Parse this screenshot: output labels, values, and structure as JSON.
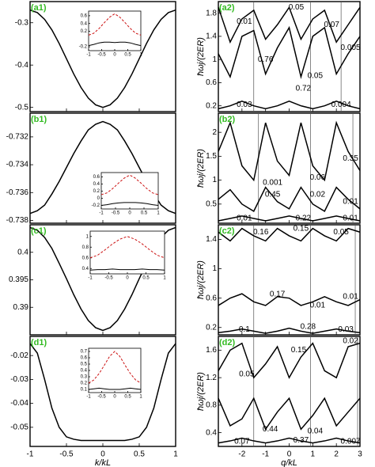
{
  "chart_data": [
    {
      "type": "line",
      "panel_label": "(a1)",
      "x": [
        -1,
        -0.9,
        -0.8,
        -0.7,
        -0.6,
        -0.5,
        -0.4,
        -0.3,
        -0.2,
        -0.1,
        0,
        0.1,
        0.2,
        0.3,
        0.4,
        0.5,
        0.6,
        0.7,
        0.8,
        0.9,
        1
      ],
      "series": [
        {
          "color": "#000000",
          "style": "solid",
          "values": [
            -0.27,
            -0.276,
            -0.292,
            -0.317,
            -0.349,
            -0.385,
            -0.421,
            -0.453,
            -0.478,
            -0.494,
            -0.5,
            -0.494,
            -0.478,
            -0.453,
            -0.421,
            -0.385,
            -0.349,
            -0.317,
            -0.292,
            -0.276,
            -0.27
          ]
        }
      ],
      "xlim": [
        -1,
        1
      ],
      "xticks": [
        -1,
        -0.5,
        0,
        0.5,
        1
      ],
      "ylim": [
        -0.51,
        -0.25
      ],
      "yticks": [
        -0.3,
        -0.4,
        -0.5
      ],
      "inset": {
        "x": [
          -1,
          -0.8,
          -0.6,
          -0.4,
          -0.2,
          0,
          0.2,
          0.4,
          0.6,
          0.8,
          1
        ],
        "xlim": [
          -1,
          1
        ],
        "xticks": [
          -1,
          -0.5,
          0,
          0.5,
          1
        ],
        "ylim": [
          -0.3,
          0.72
        ],
        "yticks": [
          -0.2,
          0.2,
          0.4,
          0.6
        ],
        "series": [
          {
            "color": "#cc1111",
            "style": "dashed",
            "values": [
              0.1,
              0.15,
              0.27,
              0.42,
              0.56,
              0.65,
              0.56,
              0.42,
              0.27,
              0.15,
              0.1
            ]
          },
          {
            "color": "#000000",
            "style": "solid",
            "values": [
              -0.17,
              -0.14,
              -0.1,
              -0.08,
              -0.08,
              -0.09,
              -0.08,
              -0.08,
              -0.1,
              -0.14,
              -0.17
            ]
          }
        ]
      }
    },
    {
      "type": "line",
      "panel_label": "(b1)",
      "x": [
        -1,
        -0.9,
        -0.8,
        -0.7,
        -0.6,
        -0.5,
        -0.4,
        -0.3,
        -0.2,
        -0.1,
        0,
        0.1,
        0.2,
        0.3,
        0.4,
        0.5,
        0.6,
        0.7,
        0.8,
        0.9,
        1
      ],
      "series": [
        {
          "color": "#000000",
          "style": "solid",
          "values": [
            -0.7375,
            -0.7373,
            -0.7369,
            -0.7361,
            -0.7352,
            -0.7342,
            -0.7332,
            -0.7323,
            -0.7315,
            -0.7311,
            -0.7309,
            -0.7311,
            -0.7315,
            -0.7323,
            -0.7332,
            -0.7342,
            -0.7352,
            -0.7361,
            -0.7369,
            -0.7373,
            -0.7375
          ]
        }
      ],
      "xlim": [
        -1,
        1
      ],
      "xticks": [
        -1,
        -0.5,
        0,
        0.5,
        1
      ],
      "ylim": [
        -0.7382,
        -0.7303
      ],
      "yticks": [
        -0.732,
        -0.734,
        -0.736,
        -0.738
      ],
      "inset": {
        "x": [
          -1,
          -0.8,
          -0.6,
          -0.4,
          -0.2,
          0,
          0.2,
          0.4,
          0.6,
          0.8,
          1
        ],
        "xlim": [
          -1,
          1
        ],
        "xticks": [
          -1,
          -0.5,
          0,
          0.5,
          1
        ],
        "ylim": [
          -0.3,
          0.72
        ],
        "yticks": [
          -0.2,
          0,
          0.2,
          0.4,
          0.6
        ],
        "series": [
          {
            "color": "#cc1111",
            "style": "dashed",
            "values": [
              0.1,
              0.15,
              0.27,
              0.42,
              0.56,
              0.65,
              0.56,
              0.42,
              0.27,
              0.15,
              0.1
            ]
          },
          {
            "color": "#000000",
            "style": "solid",
            "values": [
              -0.2,
              -0.18,
              -0.15,
              -0.13,
              -0.12,
              -0.12,
              -0.12,
              -0.13,
              -0.15,
              -0.18,
              -0.2
            ]
          }
        ]
      }
    },
    {
      "type": "line",
      "panel_label": "(c1)",
      "x": [
        -1,
        -0.9,
        -0.8,
        -0.7,
        -0.6,
        -0.5,
        -0.4,
        -0.3,
        -0.2,
        -0.1,
        0,
        0.1,
        0.2,
        0.3,
        0.4,
        0.5,
        0.6,
        0.7,
        0.8,
        0.9,
        1
      ],
      "series": [
        {
          "color": "#000000",
          "style": "solid",
          "values": [
            0.4045,
            0.404,
            0.4027,
            0.4007,
            0.398,
            0.3952,
            0.3923,
            0.3897,
            0.3876,
            0.3863,
            0.3858,
            0.3863,
            0.3876,
            0.3897,
            0.3923,
            0.3952,
            0.398,
            0.4007,
            0.4027,
            0.404,
            0.4045
          ]
        }
      ],
      "xlim": [
        -1,
        1
      ],
      "xticks": [
        -1,
        -0.5,
        0,
        0.5,
        1
      ],
      "ylim": [
        0.385,
        0.405
      ],
      "yticks": [
        0.4,
        0.395,
        0.39
      ],
      "inset": {
        "x": [
          -1,
          -0.8,
          -0.6,
          -0.4,
          -0.2,
          0,
          0.2,
          0.4,
          0.6,
          0.8,
          1
        ],
        "xlim": [
          -1,
          1
        ],
        "xticks": [
          -1,
          -0.5,
          0,
          0.5,
          1
        ],
        "ylim": [
          0.3,
          1.1
        ],
        "yticks": [
          0.4,
          0.6,
          0.8,
          1
        ],
        "series": [
          {
            "color": "#cc1111",
            "style": "dashed",
            "values": [
              0.6,
              0.65,
              0.75,
              0.86,
              0.95,
              1.0,
              0.95,
              0.86,
              0.75,
              0.65,
              0.6
            ]
          },
          {
            "color": "#000000",
            "style": "solid",
            "values": [
              0.37,
              0.38,
              0.38,
              0.39,
              0.38,
              0.38,
              0.38,
              0.39,
              0.38,
              0.38,
              0.37
            ]
          }
        ]
      }
    },
    {
      "type": "line",
      "panel_label": "(d1)",
      "x": [
        -1,
        -0.9,
        -0.8,
        -0.7,
        -0.6,
        -0.5,
        -0.4,
        -0.3,
        -0.2,
        -0.1,
        0,
        0.1,
        0.2,
        0.3,
        0.4,
        0.5,
        0.6,
        0.7,
        0.8,
        0.9,
        1
      ],
      "series": [
        {
          "color": "#000000",
          "style": "solid",
          "values": [
            -0.015,
            -0.019,
            -0.03,
            -0.042,
            -0.05,
            -0.054,
            -0.055,
            -0.0555,
            -0.0555,
            -0.0555,
            -0.0555,
            -0.0555,
            -0.0555,
            -0.0555,
            -0.055,
            -0.054,
            -0.05,
            -0.042,
            -0.03,
            -0.019,
            -0.015
          ]
        }
      ],
      "xlim": [
        -1,
        1
      ],
      "xticks": [
        -1,
        -0.5,
        0,
        0.5,
        1
      ],
      "ylim": [
        -0.058,
        -0.012
      ],
      "yticks": [
        -0.02,
        -0.03,
        -0.04,
        -0.05
      ],
      "x_label": "k/kL",
      "inset": {
        "x": [
          -1,
          -0.8,
          -0.6,
          -0.4,
          -0.2,
          0,
          0.2,
          0.4,
          0.6,
          0.8,
          1
        ],
        "xlim": [
          -1,
          1
        ],
        "xticks": [
          -1,
          -0.5,
          0,
          0.5,
          1
        ],
        "ylim": [
          0.05,
          0.75
        ],
        "yticks": [
          0.1,
          0.2,
          0.3,
          0.4,
          0.5,
          0.6,
          0.7
        ],
        "series": [
          {
            "color": "#cc1111",
            "style": "dashed",
            "values": [
              0.2,
              0.25,
              0.35,
              0.48,
              0.62,
              0.7,
              0.62,
              0.48,
              0.35,
              0.25,
              0.2
            ]
          },
          {
            "color": "#000000",
            "style": "solid",
            "values": [
              0.1,
              0.11,
              0.12,
              0.11,
              0.1,
              0.1,
              0.1,
              0.11,
              0.12,
              0.11,
              0.1
            ]
          }
        ]
      }
    },
    {
      "type": "line",
      "panel_label": "(a2)",
      "y_label": "ħωj/(2ER)",
      "x": [
        -3,
        -2.5,
        -2,
        -1.5,
        -1,
        -0.5,
        0,
        0.5,
        1,
        1.5,
        2,
        2.5,
        3
      ],
      "series": [
        {
          "color": "#000000",
          "style": "solid",
          "values": [
            0.15,
            0.2,
            0.28,
            0.2,
            0.15,
            0.2,
            0.28,
            0.2,
            0.15,
            0.2,
            0.28,
            0.2,
            0.15
          ]
        },
        {
          "color": "#000000",
          "style": "solid",
          "values": [
            1.1,
            0.7,
            1.4,
            1.5,
            0.75,
            1.2,
            1.55,
            0.7,
            1.4,
            1.55,
            0.75,
            1.1,
            1.4
          ]
        },
        {
          "color": "#000000",
          "style": "solid",
          "values": [
            1.9,
            1.3,
            1.7,
            1.85,
            1.35,
            1.6,
            1.9,
            1.35,
            1.7,
            1.85,
            1.3,
            1.6,
            1.9
          ]
        }
      ],
      "annotations": [
        "0.01",
        "0.05",
        "0.07",
        "0.005",
        "0.76",
        "0.05",
        "0.03",
        "0.72",
        "0.004"
      ],
      "xlim": [
        -3,
        3
      ],
      "xticks": [
        -2,
        -1,
        0,
        1,
        2,
        3
      ],
      "ylim": [
        0.1,
        2.0
      ],
      "yticks": [
        0.2,
        0.6,
        1,
        1.4,
        1.8
      ]
    },
    {
      "type": "line",
      "panel_label": "(b2)",
      "y_label": "ħωj/(2ER)",
      "x": [
        -3,
        -2.5,
        -2,
        -1.5,
        -1,
        -0.5,
        0,
        0.5,
        1,
        1.5,
        2,
        2.5,
        3
      ],
      "series": [
        {
          "color": "#000000",
          "style": "solid",
          "values": [
            0.15,
            0.2,
            0.25,
            0.2,
            0.15,
            0.2,
            0.25,
            0.2,
            0.15,
            0.2,
            0.25,
            0.2,
            0.15
          ]
        },
        {
          "color": "#000000",
          "style": "solid",
          "values": [
            0.6,
            0.8,
            0.5,
            0.35,
            0.85,
            0.55,
            0.4,
            0.85,
            0.5,
            0.35,
            0.85,
            0.6,
            0.4
          ]
        },
        {
          "color": "#000000",
          "style": "solid",
          "values": [
            1.6,
            2.2,
            1.3,
            1.0,
            2.2,
            1.4,
            1.1,
            2.2,
            1.3,
            1.0,
            2.2,
            1.6,
            1.2
          ]
        }
      ],
      "annotations": [
        "0.001",
        "0.06",
        "0.35",
        "0.45",
        "0.02",
        "0.01",
        "0.01",
        "0.22",
        "0.01"
      ],
      "xlim": [
        -3,
        3
      ],
      "xticks": [
        -2,
        -1,
        0,
        1,
        2,
        3
      ],
      "ylim": [
        0.1,
        2.4
      ],
      "yticks": [
        0.5,
        1,
        1.5,
        2
      ]
    },
    {
      "type": "line",
      "panel_label": "(c2)",
      "y_label": "ħωj/(2ER)",
      "x": [
        -3,
        -2.5,
        -2,
        -1.5,
        -1,
        -0.5,
        0,
        0.5,
        1,
        1.5,
        2,
        2.5,
        3
      ],
      "series": [
        {
          "color": "#000000",
          "style": "solid",
          "values": [
            0.13,
            0.15,
            0.18,
            0.15,
            0.12,
            0.15,
            0.19,
            0.15,
            0.12,
            0.15,
            0.18,
            0.15,
            0.13
          ]
        },
        {
          "color": "#000000",
          "style": "solid",
          "values": [
            0.5,
            0.6,
            0.66,
            0.55,
            0.5,
            0.62,
            0.6,
            0.5,
            0.55,
            0.62,
            0.55,
            0.5,
            0.58
          ]
        },
        {
          "color": "#000000",
          "style": "solid",
          "values": [
            1.5,
            1.38,
            1.55,
            1.45,
            1.38,
            1.55,
            1.45,
            1.38,
            1.55,
            1.45,
            1.38,
            1.55,
            1.5
          ]
        }
      ],
      "annotations": [
        "0.16",
        "0.15",
        "0.05",
        "0.17",
        "0.01",
        "0.01",
        "0.1",
        "0.28",
        "0.03"
      ],
      "xlim": [
        -3,
        3
      ],
      "xticks": [
        -2,
        -1,
        0,
        1,
        2,
        3
      ],
      "ylim": [
        0.1,
        1.6
      ],
      "yticks": [
        0.2,
        0.6,
        1,
        1.4
      ]
    },
    {
      "type": "line",
      "panel_label": "(d2)",
      "y_label": "ħωj/(2ER)",
      "x_label": "q/kL",
      "x": [
        -3,
        -2.5,
        -2,
        -1.5,
        -1,
        -0.5,
        0,
        0.5,
        1,
        1.5,
        2,
        2.5,
        3
      ],
      "series": [
        {
          "color": "#000000",
          "style": "solid",
          "values": [
            0.25,
            0.28,
            0.32,
            0.28,
            0.25,
            0.28,
            0.32,
            0.28,
            0.25,
            0.28,
            0.32,
            0.28,
            0.25
          ]
        },
        {
          "color": "#000000",
          "style": "solid",
          "values": [
            0.9,
            0.5,
            0.6,
            0.9,
            0.45,
            0.7,
            0.9,
            0.45,
            0.65,
            0.9,
            0.5,
            0.7,
            0.9
          ]
        },
        {
          "color": "#000000",
          "style": "solid",
          "values": [
            1.3,
            1.6,
            1.7,
            1.2,
            1.4,
            1.65,
            1.2,
            1.5,
            1.7,
            1.3,
            1.2,
            1.65,
            1.7
          ]
        }
      ],
      "annotations": [
        "0.05",
        "0.15",
        "0.02",
        "0.44",
        "0.04",
        "0.07",
        "0.37",
        "0.007"
      ],
      "xlim": [
        -3,
        3
      ],
      "xticks": [
        -2,
        -1,
        0,
        1,
        2,
        3
      ],
      "ylim": [
        0.2,
        1.8
      ],
      "yticks": [
        0.4,
        0.8,
        1.2,
        1.6
      ]
    }
  ]
}
